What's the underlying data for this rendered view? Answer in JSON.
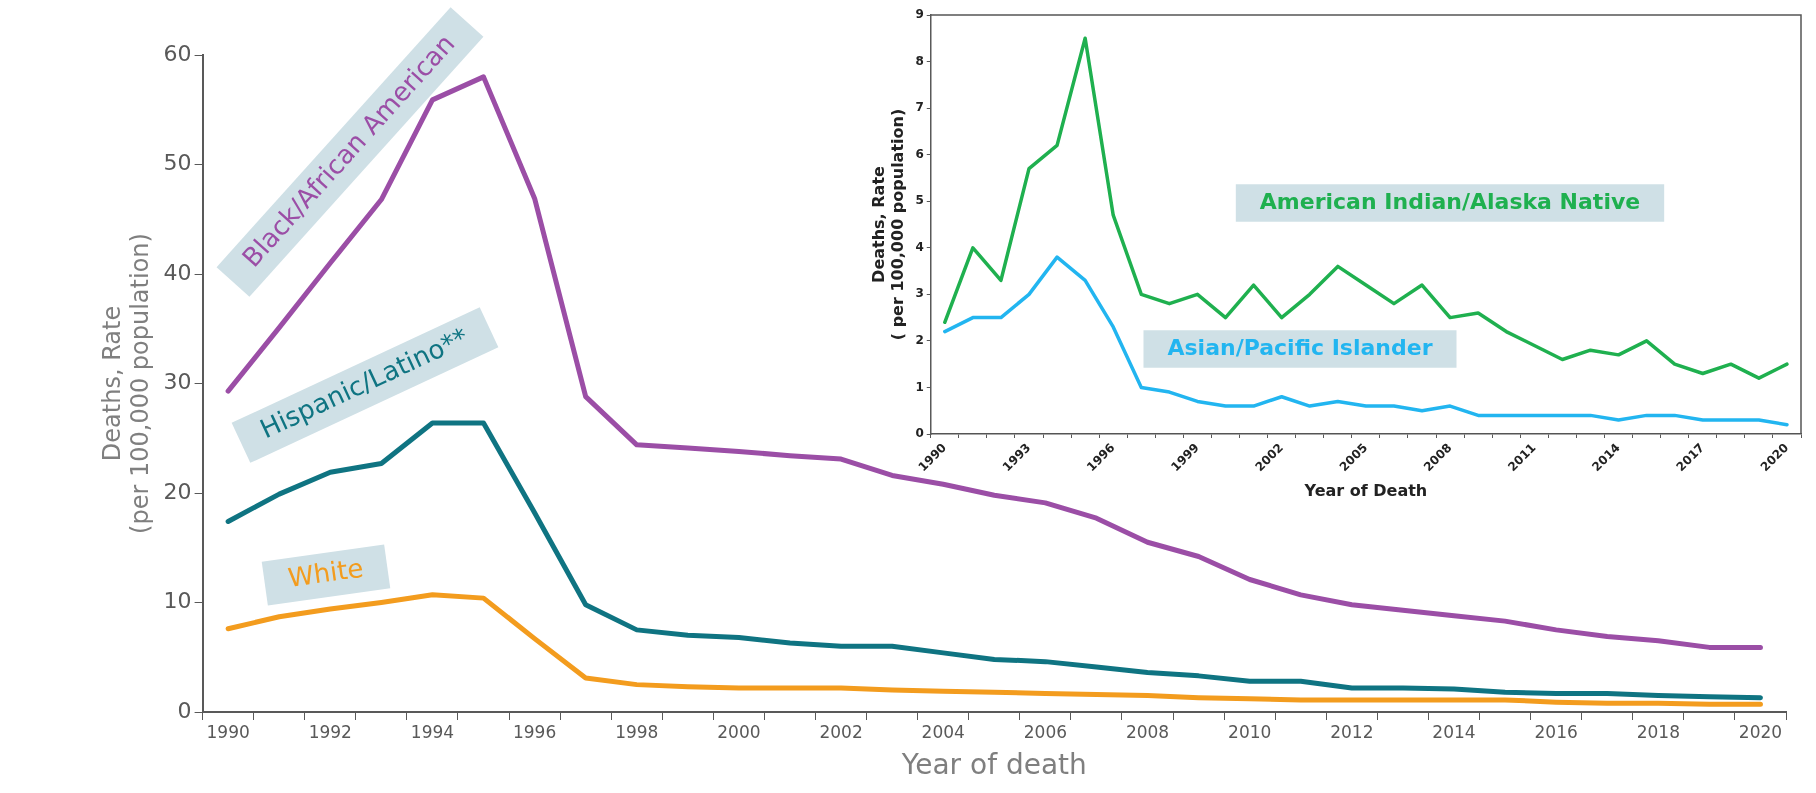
{
  "chart_data": [
    {
      "type": "line",
      "xlabel": "Year of death",
      "ylabel": "Deaths, Rate\n(per 100,000 population)",
      "categories": [
        "1990",
        null,
        "1992",
        null,
        "1994",
        null,
        "1996",
        null,
        "1998",
        null,
        "2000",
        null,
        "2002",
        null,
        "2004",
        null,
        "2006",
        null,
        "2008",
        null,
        "2010",
        null,
        "2012",
        null,
        "2014",
        null,
        "2016",
        null,
        "2018",
        null,
        "2020"
      ],
      "ylim": [
        0,
        60
      ],
      "yticks": [
        0,
        10,
        20,
        30,
        40,
        50,
        60
      ],
      "grid": false,
      "series": [
        {
          "name": "Black/African American",
          "color": "#9b4ea6",
          "values": [
            29.3,
            35.1,
            41,
            46.8,
            55.9,
            58,
            46.9,
            28.8,
            24.4,
            24.1,
            23.8,
            23.4,
            23.1,
            21.6,
            20.8,
            19.8,
            19.1,
            17.7,
            15.5,
            14.2,
            12.1,
            10.7,
            9.8,
            9.3,
            8.8,
            8.3,
            7.5,
            6.9,
            6.5,
            5.9,
            5.9
          ]
        },
        {
          "name": "Hispanic/Latino**",
          "color": "#0f7482",
          "values": [
            17.4,
            19.9,
            21.9,
            22.7,
            26.4,
            26.4,
            18.2,
            9.8,
            7.5,
            7,
            6.8,
            6.3,
            6,
            6,
            5.4,
            4.8,
            4.6,
            4.1,
            3.6,
            3.3,
            2.8,
            2.8,
            2.2,
            2.2,
            2.1,
            1.8,
            1.7,
            1.7,
            1.5,
            1.4,
            1.3
          ]
        },
        {
          "name": "White",
          "color": "#f39c1e",
          "values": [
            7.6,
            8.7,
            9.4,
            10,
            10.7,
            10.4,
            6.7,
            3.1,
            2.5,
            2.3,
            2.2,
            2.2,
            2.2,
            2,
            1.9,
            1.8,
            1.7,
            1.6,
            1.5,
            1.3,
            1.2,
            1.1,
            1.1,
            1.1,
            1.1,
            1.1,
            0.9,
            0.8,
            0.8,
            0.7,
            0.7
          ]
        }
      ]
    },
    {
      "type": "line",
      "xlabel": "Year of Death",
      "ylabel": "Deaths, Rate\n( per 100,000 population)",
      "categories": [
        "1990",
        null,
        null,
        "1993",
        null,
        null,
        "1996",
        null,
        null,
        "1999",
        null,
        null,
        "2002",
        null,
        null,
        "2005",
        null,
        null,
        "2008",
        null,
        null,
        "2011",
        null,
        null,
        "2014",
        null,
        null,
        "2017",
        null,
        null,
        "2020"
      ],
      "ylim": [
        0,
        9
      ],
      "yticks": [
        0,
        1,
        2,
        3,
        4,
        5,
        6,
        7,
        8,
        9
      ],
      "grid": false,
      "series": [
        {
          "name": "American Indian/Alaska Native",
          "color": "#1fb04f",
          "values": [
            2.4,
            4,
            3.3,
            5.7,
            6.2,
            8.5,
            4.7,
            3,
            2.8,
            3,
            2.5,
            3.2,
            2.5,
            3,
            3.6,
            3.2,
            2.8,
            3.2,
            2.5,
            2.6,
            2.2,
            1.9,
            1.6,
            1.8,
            1.7,
            2,
            1.5,
            1.3,
            1.5,
            1.2,
            1.5
          ]
        },
        {
          "name": "Asian/Pacific Islander",
          "color": "#22b5f0",
          "values": [
            2.2,
            2.5,
            2.5,
            3,
            3.8,
            3.3,
            2.3,
            1,
            0.9,
            0.7,
            0.6,
            0.6,
            0.8,
            0.6,
            0.7,
            0.6,
            0.6,
            0.5,
            0.6,
            0.4,
            0.4,
            0.4,
            0.4,
            0.4,
            0.3,
            0.4,
            0.4,
            0.3,
            0.3,
            0.3,
            0.2
          ]
        }
      ]
    }
  ]
}
